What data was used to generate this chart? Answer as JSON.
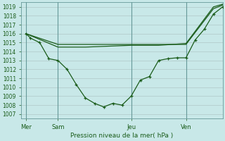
{
  "background_color": "#c8e8e8",
  "grid_color": "#b0c8c8",
  "line_color": "#1a5c1a",
  "title": "Pression niveau de la mer( hPa )",
  "ylim": [
    1006.5,
    1019.5
  ],
  "yticks": [
    1007,
    1008,
    1009,
    1010,
    1011,
    1012,
    1013,
    1014,
    1015,
    1016,
    1017,
    1018,
    1019
  ],
  "xlim": [
    0,
    22
  ],
  "xtick_labels": [
    "Mer",
    "Sam",
    "Jeu",
    "Ven"
  ],
  "xtick_positions": [
    0.5,
    4,
    12,
    18
  ],
  "vline_positions": [
    0.5,
    4,
    12,
    18
  ],
  "series1_x": [
    0.5,
    1,
    2,
    3,
    4,
    5,
    6,
    7,
    8,
    9,
    10,
    11,
    12,
    13,
    14,
    15,
    16,
    17,
    18,
    19,
    20,
    21,
    22
  ],
  "series1_y": [
    1016.0,
    1015.5,
    1015.0,
    1013.2,
    1013.0,
    1012.0,
    1010.3,
    1008.8,
    1008.2,
    1007.8,
    1008.2,
    1008.0,
    1009.0,
    1010.8,
    1011.2,
    1013.0,
    1013.2,
    1013.3,
    1013.3,
    1015.3,
    1016.5,
    1018.2,
    1019.0
  ],
  "series2_x": [
    0.5,
    4,
    7,
    12,
    15,
    18,
    21,
    22
  ],
  "series2_y": [
    1016.0,
    1014.8,
    1014.8,
    1014.8,
    1014.8,
    1014.8,
    1018.8,
    1019.2
  ],
  "series3_x": [
    0.5,
    4,
    7,
    12,
    15,
    18,
    21,
    22
  ],
  "series3_y": [
    1016.0,
    1014.5,
    1014.5,
    1014.7,
    1014.7,
    1014.9,
    1019.0,
    1019.3
  ],
  "marker": "+",
  "marker_size": 3.5,
  "linewidth": 0.9
}
